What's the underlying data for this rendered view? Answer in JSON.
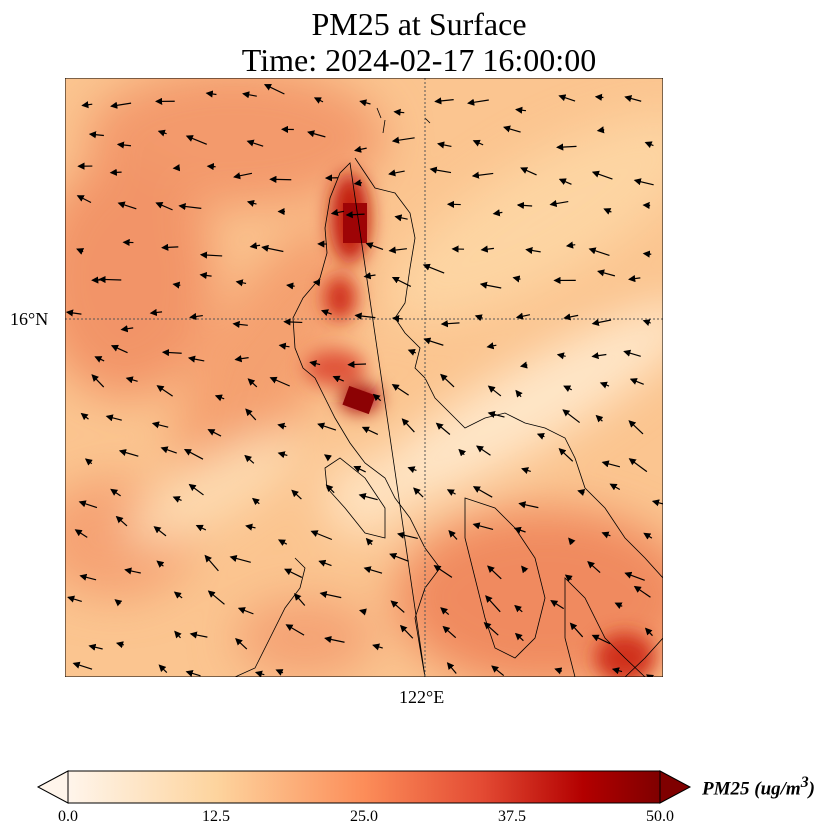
{
  "title": {
    "line1": "PM25 at Surface",
    "line2": "Time: 2024-02-17 16:00:00"
  },
  "map": {
    "lat_label": "16°N",
    "lon_label": "122°E",
    "field": "PM25",
    "wind_vectors": "wind-arrows"
  },
  "colorbar": {
    "label_main": "PM25 (ug/m",
    "label_sup": "3",
    "label_close": ")",
    "ticks": [
      "0.0",
      "12.5",
      "25.0",
      "37.5",
      "50.0"
    ],
    "min": 0,
    "max": 50,
    "extend": "both",
    "colors": [
      "#fff5eb",
      "#fdd49e",
      "#fc8d59",
      "#e34a33",
      "#b30000",
      "#7f0000"
    ]
  }
}
